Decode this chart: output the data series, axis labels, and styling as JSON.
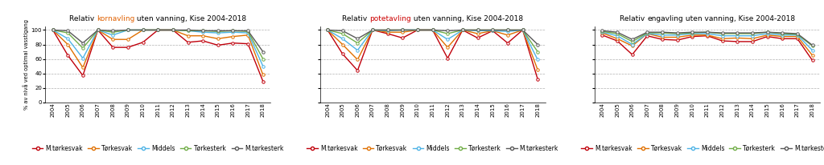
{
  "years": [
    2004,
    2005,
    2006,
    2007,
    2008,
    2009,
    2010,
    2011,
    2012,
    2013,
    2014,
    2015,
    2016,
    2017,
    2018
  ],
  "charts": [
    {
      "title_parts": [
        "Relativ ",
        "kornavling",
        " uten vanning, Kise 2004-2018"
      ],
      "title_colors": [
        "black",
        "#e06000",
        "black"
      ],
      "series": {
        "M.tørkesvak": [
          100,
          65,
          37,
          100,
          76,
          76,
          83,
          100,
          100,
          83,
          85,
          79,
          82,
          81,
          29
        ],
        "Tørkesvak": [
          100,
          80,
          48,
          100,
          87,
          87,
          100,
          100,
          100,
          92,
          92,
          88,
          91,
          93,
          38
        ],
        "Middels": [
          100,
          88,
          61,
          100,
          93,
          100,
          100,
          100,
          100,
          99,
          97,
          96,
          97,
          96,
          50
        ],
        "Tørkesterk": [
          100,
          96,
          75,
          100,
          97,
          100,
          100,
          100,
          100,
          99,
          99,
          98,
          99,
          98,
          60
        ],
        "M.tørkesterk": [
          100,
          99,
          82,
          100,
          99,
          100,
          100,
          100,
          100,
          100,
          99,
          99,
          99,
          99,
          70
        ]
      }
    },
    {
      "title_parts": [
        "Relativ ",
        "potetavling",
        " uten vanning, Kise 2004-2018"
      ],
      "title_colors": [
        "black",
        "#cc0000",
        "black"
      ],
      "series": {
        "M.tørkesvak": [
          100,
          67,
          44,
          100,
          95,
          89,
          100,
          100,
          61,
          100,
          89,
          99,
          82,
          100,
          32
        ],
        "Tørkesvak": [
          100,
          80,
          59,
          100,
          97,
          97,
          100,
          100,
          76,
          100,
          95,
          99,
          93,
          100,
          45
        ],
        "Middels": [
          100,
          88,
          72,
          100,
          99,
          100,
          100,
          100,
          87,
          100,
          99,
          99,
          98,
          100,
          59
        ],
        "Tørkesterk": [
          100,
          95,
          82,
          100,
          100,
          100,
          100,
          100,
          95,
          100,
          100,
          100,
          100,
          100,
          70
        ],
        "M.tørkesterk": [
          100,
          99,
          88,
          100,
          100,
          100,
          100,
          100,
          99,
          100,
          100,
          100,
          100,
          100,
          80
        ]
      }
    },
    {
      "title_parts": [
        "Relativ ",
        "engavling",
        " uten vanning, Kise 2004-2018"
      ],
      "title_colors": [
        "black",
        "black",
        "black"
      ],
      "series": {
        "M.tørkesvak": [
          93,
          85,
          66,
          92,
          87,
          86,
          91,
          92,
          85,
          84,
          84,
          91,
          88,
          88,
          58
        ],
        "Tørkesvak": [
          96,
          88,
          78,
          95,
          90,
          90,
          93,
          93,
          88,
          89,
          88,
          93,
          91,
          91,
          65
        ],
        "Middels": [
          97,
          92,
          80,
          95,
          93,
          93,
          95,
          95,
          92,
          92,
          92,
          95,
          93,
          93,
          72
        ],
        "Tørkesterk": [
          98,
          95,
          84,
          96,
          96,
          95,
          96,
          97,
          95,
          95,
          95,
          97,
          95,
          94,
          78
        ],
        "M.tørkesterk": [
          99,
          97,
          87,
          97,
          97,
          96,
          97,
          97,
          96,
          96,
          96,
          97,
          96,
          95,
          79
        ]
      }
    }
  ],
  "series_colors": {
    "M.tørkesvak": "#c0000b",
    "Tørkesvak": "#e07000",
    "Middels": "#4db3e6",
    "Tørkesterk": "#70ad47",
    "M.tørkesterk": "#595959"
  },
  "ylabel": "% av nivå ved optimal vasstigang",
  "ylim": [
    0,
    105
  ],
  "yticks": [
    0,
    20,
    40,
    60,
    80,
    100
  ],
  "marker": "o",
  "markersize": 2.5,
  "linewidth": 1.0,
  "background_color": "#ffffff",
  "legend_labels": [
    "M.tørkesvak",
    "Tørkesvak",
    "Middels",
    "Tørkesterk",
    "M.tørkesterk"
  ],
  "title_fontsize": 6.5,
  "tick_fontsize": 5.0,
  "ylabel_fontsize": 4.8,
  "legend_fontsize": 5.5
}
